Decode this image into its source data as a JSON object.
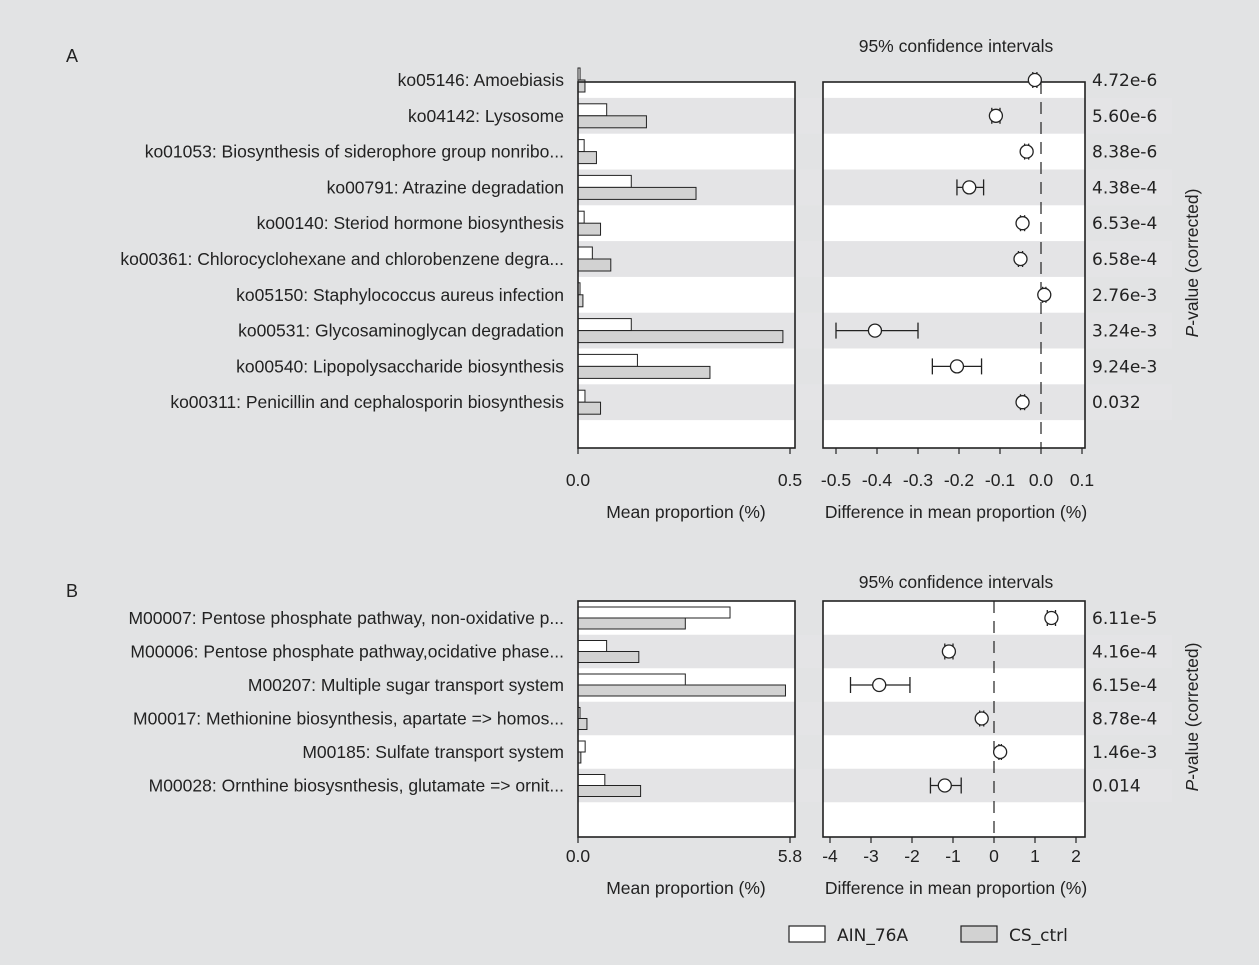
{
  "chart_data": [
    {
      "type": "bar",
      "panel_label": "A",
      "title": "95% confidence intervals",
      "bar_xlabel": "Mean proportion (%)",
      "ci_xlabel": "Difference in mean proportion (%)",
      "pvalue_label_italic": "P",
      "pvalue_label_rest": "-value (corrected)",
      "bar_xlim": [
        0,
        0.5
      ],
      "bar_ticks": [
        "0.0",
        "0.5"
      ],
      "ci_xlim": [
        -0.5,
        0.1
      ],
      "ci_ticks": [
        -0.5,
        -0.4,
        -0.3,
        -0.2,
        -0.1,
        0.0,
        0.1
      ],
      "ci_tick_labels": [
        "-0.5",
        "-0.4",
        "-0.3",
        "-0.2",
        "-0.1",
        "0.0",
        "0.1"
      ],
      "categories": [
        "ko05146: Amoebiasis",
        "ko04142: Lysosome",
        "ko01053: Biosynthesis of siderophore group nonribo...",
        "ko00791: Atrazine degradation",
        "ko00140: Steriod hormone biosynthesis",
        "ko00361: Chlorocyclohexane and chlorobenzene degra...",
        "ko05150: Staphylococcus aureus infection",
        "ko00531: Glycosaminoglycan degradation",
        "ko00540: Lipopolysaccharide biosynthesis",
        "ko00311: Penicillin and cephalosporin biosynthesis"
      ],
      "series": [
        {
          "name": "AIN_76A",
          "values": [
            0.005,
            0.07,
            0.015,
            0.13,
            0.015,
            0.035,
            0.003,
            0.13,
            0.145,
            0.017
          ]
        },
        {
          "name": "CS_ctrl",
          "values": [
            0.017,
            0.167,
            0.045,
            0.288,
            0.055,
            0.08,
            0.012,
            0.5,
            0.322,
            0.055
          ]
        }
      ],
      "ci": [
        {
          "mean": -0.015,
          "low": -0.02,
          "high": -0.01
        },
        {
          "mean": -0.11,
          "low": -0.12,
          "high": -0.1
        },
        {
          "mean": -0.035,
          "low": -0.04,
          "high": -0.03
        },
        {
          "mean": -0.175,
          "low": -0.205,
          "high": -0.14
        },
        {
          "mean": -0.045,
          "low": -0.05,
          "high": -0.04
        },
        {
          "mean": -0.05,
          "low": -0.055,
          "high": -0.045
        },
        {
          "mean": 0.008,
          "low": 0.004,
          "high": 0.012
        },
        {
          "mean": -0.405,
          "low": -0.5,
          "high": -0.3
        },
        {
          "mean": -0.205,
          "low": -0.265,
          "high": -0.145
        },
        {
          "mean": -0.045,
          "low": -0.05,
          "high": -0.04
        }
      ],
      "pvalues": [
        "4.72e-6",
        "5.60e-6",
        "8.38e-6",
        "4.38e-4",
        "6.53e-4",
        "6.58e-4",
        "2.76e-3",
        "3.24e-3",
        "9.24e-3",
        "0.032"
      ]
    },
    {
      "type": "bar",
      "panel_label": "B",
      "title": "95% confidence intervals",
      "bar_xlabel": "Mean proportion (%)",
      "ci_xlabel": "Difference in mean proportion (%)",
      "pvalue_label_italic": "P",
      "pvalue_label_rest": "-value (corrected)",
      "bar_xlim": [
        0,
        5.8
      ],
      "bar_ticks": [
        "0.0",
        "5.8"
      ],
      "ci_xlim": [
        -4,
        2
      ],
      "ci_ticks": [
        -4,
        -3,
        -2,
        -1,
        0,
        1,
        2
      ],
      "ci_tick_labels": [
        "-4",
        "-3",
        "-2",
        "-1",
        "0",
        "1",
        "2"
      ],
      "categories": [
        "M00007: Pentose phosphate pathway, non-oxidative p...",
        "M00006: Pentose phosphate pathway,ocidative phase...",
        "M00207: Multiple sugar transport system",
        "M00017: Methionine biosynthesis, apartate => homos...",
        "M00185: Sulfate transport system",
        "M00028: Ornthine biosysnthesis, glutamate => ornit..."
      ],
      "series": [
        {
          "name": "AIN_76A",
          "values": [
            4.25,
            0.8,
            3.0,
            0.05,
            0.2,
            0.75
          ]
        },
        {
          "name": "CS_ctrl",
          "values": [
            3.0,
            1.7,
            5.8,
            0.25,
            0.08,
            1.75
          ]
        }
      ],
      "ci": [
        {
          "mean": 1.4,
          "low": 1.3,
          "high": 1.5
        },
        {
          "mean": -1.1,
          "low": -1.2,
          "high": -1.0
        },
        {
          "mean": -2.8,
          "low": -3.5,
          "high": -2.05
        },
        {
          "mean": -0.3,
          "low": -0.35,
          "high": -0.25
        },
        {
          "mean": 0.15,
          "low": 0.12,
          "high": 0.18
        },
        {
          "mean": -1.2,
          "low": -1.55,
          "high": -0.8
        }
      ],
      "pvalues": [
        "6.11e-5",
        "4.16e-4",
        "6.15e-4",
        "8.78e-4",
        "1.46e-3",
        "0.014"
      ]
    }
  ],
  "legend": {
    "position": "bottom-right",
    "items": [
      {
        "name": "AIN_76A",
        "color": "#ffffff"
      },
      {
        "name": "CS_ctrl",
        "color": "#d2d2d2"
      }
    ]
  },
  "colors": {
    "background": "#e2e3e4",
    "plot_background": "#ffffff",
    "stripe": "#e4e4e6",
    "bar_a": "#ffffff",
    "bar_b": "#d2d2d2",
    "stroke": "#222222"
  }
}
